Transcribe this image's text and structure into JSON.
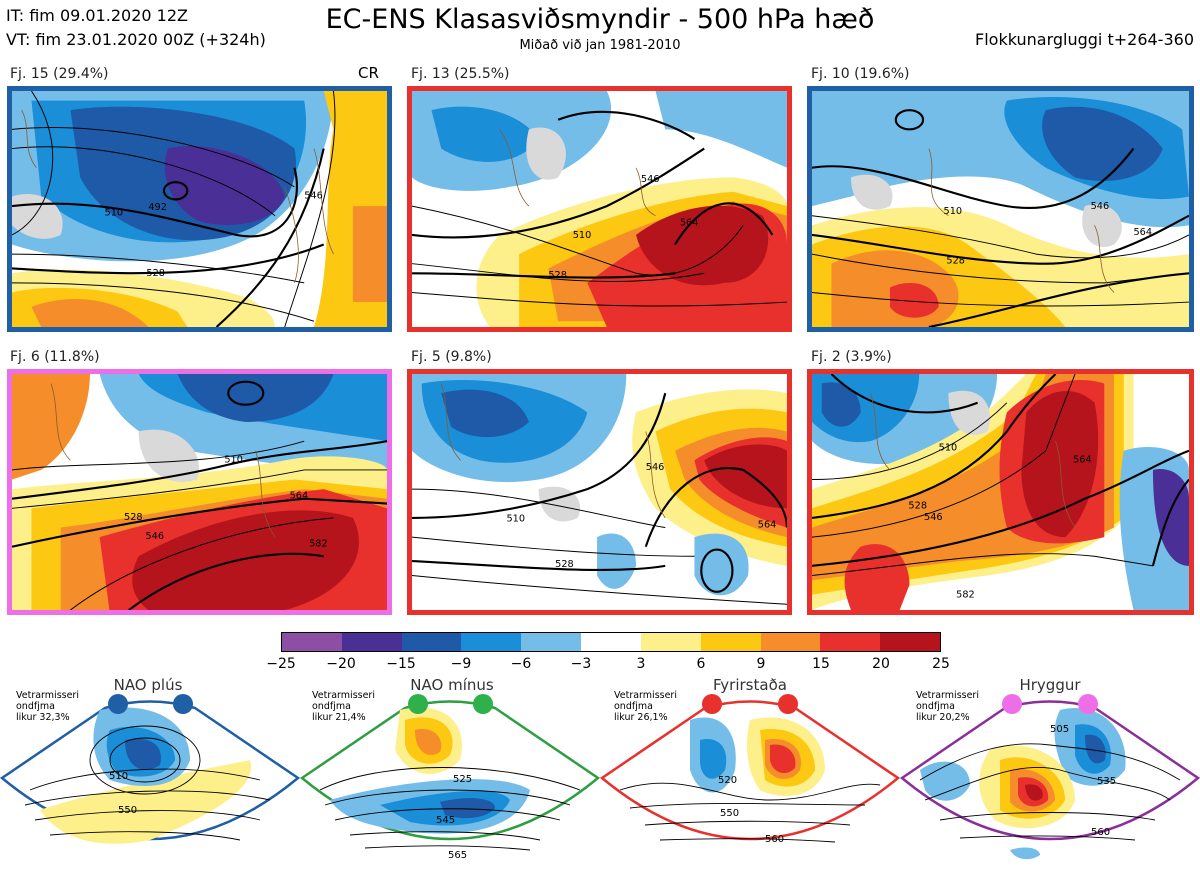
{
  "header": {
    "init_time": "IT: fim 09.01.2020 12Z",
    "valid_time": "VT: fim 23.01.2020 00Z  (+324h)",
    "title": "EC-ENS Klasasviðsmyndir - 500 hPa hæð",
    "subtitle": "Miðað við jan 1981-2010",
    "window": "Flokkunargluggi t+264-360",
    "cr_tag": "CR"
  },
  "panels": [
    {
      "label": "Fj. 15 (29.4%)",
      "frame_color": "#1f5fa5",
      "contours": [
        "510",
        "528",
        "492",
        "546"
      ]
    },
    {
      "label": "Fj. 13 (25.5%)",
      "frame_color": "#e8302c",
      "contours": [
        "510",
        "528",
        "546",
        "564"
      ]
    },
    {
      "label": "Fj. 10 (19.6%)",
      "frame_color": "#1f5fa5",
      "contours": [
        "510",
        "528",
        "546",
        "564"
      ]
    },
    {
      "label": "Fj. 6 (11.8%)",
      "frame_color": "#ee6ee8",
      "contours": [
        "510",
        "528",
        "546",
        "564",
        "582"
      ]
    },
    {
      "label": "Fj. 5 (9.8%)",
      "frame_color": "#e8302c",
      "contours": [
        "510",
        "528",
        "546",
        "564"
      ]
    },
    {
      "label": "Fj. 2 (3.9%)",
      "frame_color": "#e8302c",
      "contours": [
        "510",
        "528",
        "546",
        "564",
        "582"
      ]
    }
  ],
  "colorbar": {
    "colors": [
      "#8d4ea6",
      "#4a2f96",
      "#1e5aa8",
      "#1b8ed8",
      "#74bde9",
      "#ffffff",
      "#fdef8a",
      "#fcc812",
      "#f58d2a",
      "#e8302c",
      "#b5141c"
    ],
    "ticks": [
      "−25",
      "−20",
      "−15",
      "−9",
      "−6",
      "−3",
      "3",
      "6",
      "9",
      "15",
      "20",
      "25"
    ]
  },
  "regimes": [
    {
      "title": "NAO plús",
      "note": "Vetrarmisseri\nondfjma\nlikur 32,3%",
      "border_color": "#1f5fa5",
      "dot_color": "#1f5fa5",
      "contours": [
        "510",
        "550"
      ]
    },
    {
      "title": "NAO mínus",
      "note": "Vetrarmisseri\nondfjma\nlikur 21,4%",
      "border_color": "#2e9e42",
      "dot_color": "#2eb04a",
      "contours": [
        "525",
        "545",
        "565"
      ]
    },
    {
      "title": "Fyrirstaða",
      "note": "Vetrarmisseri\nondfjma\nlikur 26,1%",
      "border_color": "#e8302c",
      "dot_color": "#e8302c",
      "contours": [
        "520",
        "550",
        "560"
      ]
    },
    {
      "title": "Hryggur",
      "note": "Vetrarmisseri\nondfjma\nlikur 20,2%",
      "border_color": "#8a2f9a",
      "dot_color": "#ee6ee8",
      "contours": [
        "505",
        "535",
        "560"
      ]
    }
  ]
}
